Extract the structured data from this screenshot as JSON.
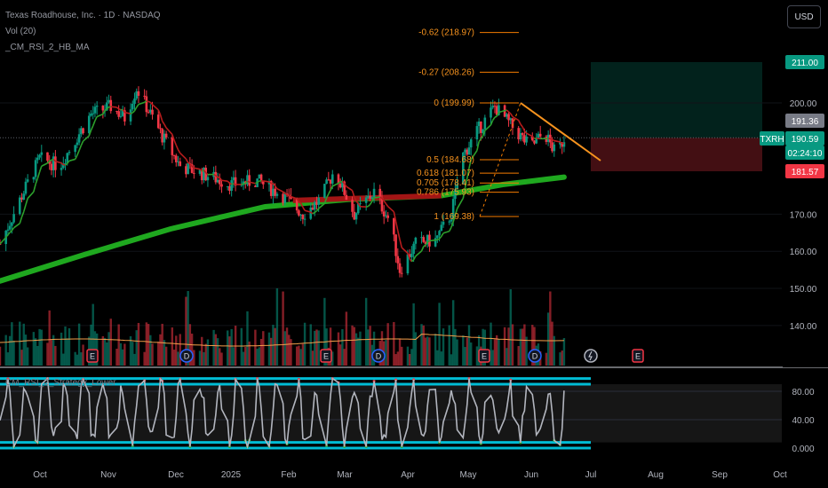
{
  "legend": {
    "symbol_line": "Texas Roadhouse, Inc. · 1D · NASDAQ",
    "volume_line": "Vol (20)",
    "indicator_line": "_CM_RSI_2_HB_MA"
  },
  "currency_button": "USD",
  "oscillator_legend": "CM_RSI_2_Strategy_Lower",
  "price_axis_ticks": [
    "200.00",
    "170.00",
    "160.00",
    "150.00",
    "140.00"
  ],
  "osc_axis_ticks": [
    "80.00",
    "40.00",
    "0.000"
  ],
  "price_labels": {
    "target": {
      "text": "211.00",
      "color": "#089981"
    },
    "high_close": {
      "text": "191.36",
      "color": "#787b86"
    },
    "symbol": {
      "text": "TXRH",
      "color": "#089981"
    },
    "last": {
      "text": "190.59",
      "color": "#089981"
    },
    "countdown": {
      "text": "02:24:10",
      "color": "#089981"
    },
    "stop": {
      "text": "181.57",
      "color": "#f23645"
    }
  },
  "time_axis": [
    "Oct",
    "Nov",
    "Dec",
    "2025",
    "Feb",
    "Mar",
    "Apr",
    "May",
    "Jun",
    "Jul",
    "Aug",
    "Sep",
    "Oct"
  ],
  "event_markers": [
    {
      "type": "earnings",
      "label": "E",
      "date": "Oct"
    },
    {
      "type": "dividend",
      "label": "D",
      "date": "Dec"
    },
    {
      "type": "earnings",
      "label": "E",
      "date": "Feb"
    },
    {
      "type": "dividend",
      "label": "D",
      "date": "Mar"
    },
    {
      "type": "earnings",
      "label": "E",
      "date": "Apr"
    },
    {
      "type": "dividend",
      "label": "D",
      "date": "Jun"
    },
    {
      "type": "split-lightning",
      "label": "",
      "date": "Jul"
    },
    {
      "type": "earnings",
      "label": "E",
      "date": "Jul"
    }
  ],
  "chart_data": {
    "type": "candlestick",
    "symbol": "TXRH",
    "fib_levels": [
      {
        "label": "-0.62 (218.97)",
        "ratio": -0.62,
        "price": 218.97
      },
      {
        "label": "-0.27 (208.26)",
        "ratio": -0.27,
        "price": 208.26
      },
      {
        "label": "0 (199.99)",
        "ratio": 0,
        "price": 199.99
      },
      {
        "label": "0.5 (184.68)",
        "ratio": 0.5,
        "price": 184.68
      },
      {
        "label": "0.618 (181.07)",
        "ratio": 0.618,
        "price": 181.07
      },
      {
        "label": "0.705 (178.41)",
        "ratio": 0.705,
        "price": 178.41
      },
      {
        "label": "0.786 (175.93)",
        "ratio": 0.786,
        "price": 175.93
      },
      {
        "label": "1 (169.38)",
        "ratio": 1,
        "price": 169.38
      }
    ],
    "last_price": 190.59,
    "position": {
      "target": 211.0,
      "entry": 190.59,
      "stop": 181.57
    },
    "price_series": [
      {
        "date": "2024-09-20",
        "value": 162
      },
      {
        "date": "2024-10-01",
        "value": 175
      },
      {
        "date": "2024-10-10",
        "value": 185
      },
      {
        "date": "2024-10-20",
        "value": 183
      },
      {
        "date": "2024-10-28",
        "value": 190
      },
      {
        "date": "2024-11-05",
        "value": 197
      },
      {
        "date": "2024-11-15",
        "value": 199
      },
      {
        "date": "2024-11-22",
        "value": 196
      },
      {
        "date": "2024-11-28",
        "value": 204
      },
      {
        "date": "2024-12-05",
        "value": 197
      },
      {
        "date": "2024-12-12",
        "value": 190
      },
      {
        "date": "2024-12-20",
        "value": 183
      },
      {
        "date": "2025-01-05",
        "value": 180
      },
      {
        "date": "2025-01-15",
        "value": 178
      },
      {
        "date": "2025-01-28",
        "value": 179
      },
      {
        "date": "2025-02-10",
        "value": 175
      },
      {
        "date": "2025-02-20",
        "value": 170
      },
      {
        "date": "2025-03-01",
        "value": 174
      },
      {
        "date": "2025-03-08",
        "value": 182
      },
      {
        "date": "2025-03-18",
        "value": 170
      },
      {
        "date": "2025-03-28",
        "value": 176
      },
      {
        "date": "2025-04-05",
        "value": 168
      },
      {
        "date": "2025-04-10",
        "value": 155
      },
      {
        "date": "2025-04-18",
        "value": 162
      },
      {
        "date": "2025-04-28",
        "value": 163
      },
      {
        "date": "2025-05-06",
        "value": 170
      },
      {
        "date": "2025-05-12",
        "value": 186
      },
      {
        "date": "2025-05-20",
        "value": 193
      },
      {
        "date": "2025-05-28",
        "value": 199
      },
      {
        "date": "2025-06-05",
        "value": 194
      },
      {
        "date": "2025-06-15",
        "value": 188
      },
      {
        "date": "2025-06-22",
        "value": 192
      },
      {
        "date": "2025-06-28",
        "value": 186
      },
      {
        "date": "2025-07-02",
        "value": 190.59
      }
    ],
    "ma_long": [
      {
        "date": "2024-09-20",
        "value": 152
      },
      {
        "date": "2024-11-01",
        "value": 159
      },
      {
        "date": "2024-12-15",
        "value": 166
      },
      {
        "date": "2025-02-01",
        "value": 172
      },
      {
        "date": "2025-03-15",
        "value": 174
      },
      {
        "date": "2025-05-01",
        "value": 175
      },
      {
        "date": "2025-06-01",
        "value": 178
      },
      {
        "date": "2025-07-02",
        "value": 180
      }
    ],
    "oscillator_range": [
      0,
      100
    ]
  }
}
